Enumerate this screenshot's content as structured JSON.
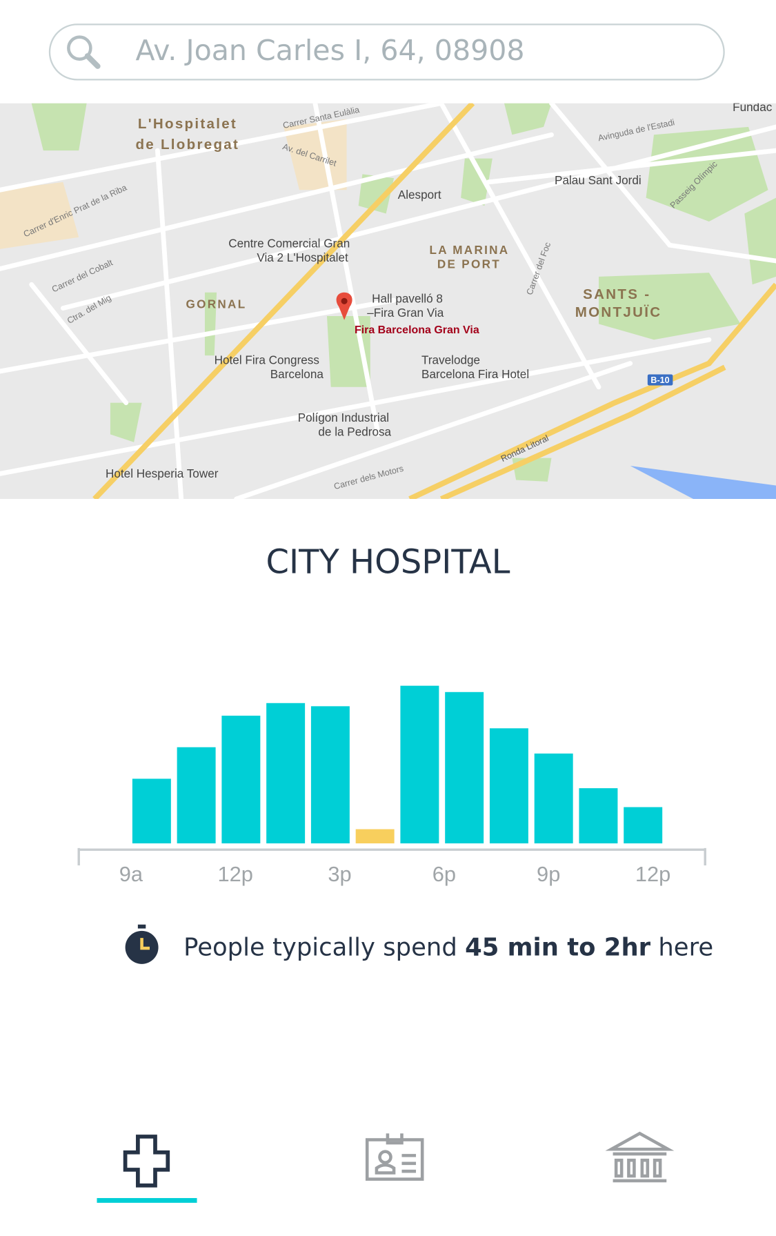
{
  "search": {
    "placeholder": "Av. Joan Carles I, 64, 08908"
  },
  "map": {
    "labels": [
      "L'Hospitalet",
      "de Llobregat",
      "Carrer Santa Eulàlia",
      "Av. del Carrilet",
      "Alesport",
      "Palau Sant Jordi",
      "Avinguda de l'Estadi",
      "Passeig Olímpic",
      "Centre Comercial Gran",
      "Via 2 L'Hospitalet",
      "LA MARINA",
      "DE PORT",
      "GORNAL",
      "Hall pavelló 8",
      "–Fira Gran Via",
      "Fira Barcelona Gran Via",
      "SANTS -",
      "MONTJUÏC",
      "Hotel Fira Congress",
      "Barcelona",
      "Travelodge",
      "Barcelona Fira Hotel",
      "Polígon Industrial",
      "de la Pedrosa",
      "Hotel Hesperia Tower",
      "Ronda Litoral",
      "Carrer dels Motors",
      "Carrer del Foc",
      "Carrer del Cobalt",
      "Ctra. del Mig",
      "Carrer d'Enric Prat de la Riba",
      "B-10",
      "Fundac"
    ]
  },
  "chart_data": {
    "type": "bar",
    "title": "CITY HOSPITAL",
    "values": [
      41,
      61,
      81,
      89,
      87,
      9,
      100,
      96,
      73,
      57,
      35,
      23
    ],
    "colors": [
      "#00cfd6",
      "#00cfd6",
      "#00cfd6",
      "#00cfd6",
      "#00cfd6",
      "#f8cf5d",
      "#00cfd6",
      "#00cfd6",
      "#00cfd6",
      "#00cfd6",
      "#00cfd6",
      "#00cfd6"
    ],
    "x_labels": [
      "9a",
      "12p",
      "3p",
      "6p",
      "9p",
      "12p"
    ]
  },
  "duration": {
    "before": "People typically spend ",
    "bold": "45 min to 2hr",
    "after": " here"
  }
}
